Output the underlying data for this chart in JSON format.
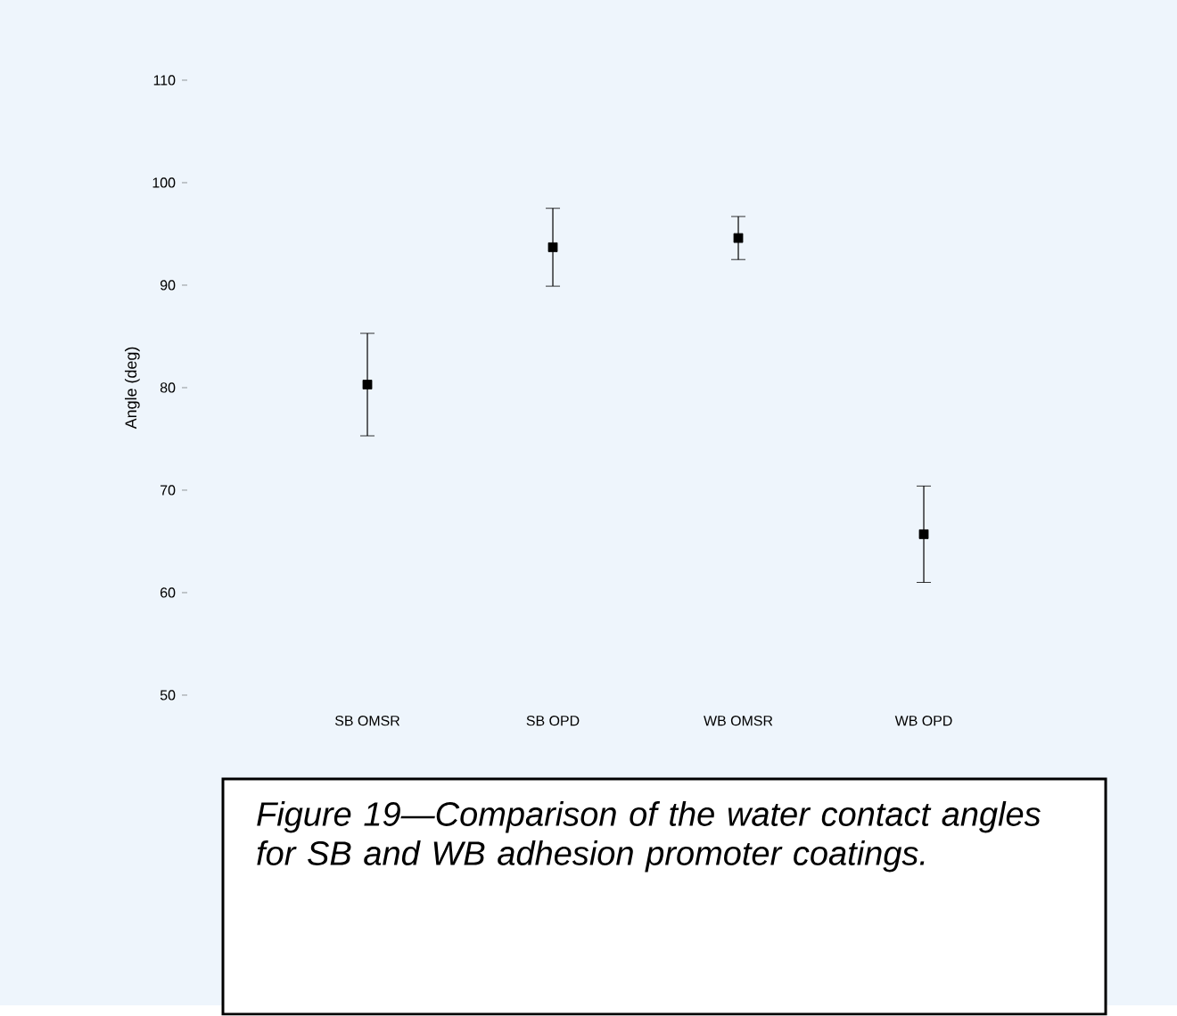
{
  "chart_data": {
    "type": "scatter",
    "ylabel": "Angle (deg)",
    "categories": [
      "SB OMSR",
      "SB OPD",
      "WB OMSR",
      "WB OPD"
    ],
    "values": [
      80.3,
      93.7,
      94.6,
      65.7
    ],
    "errors": [
      5,
      3.8,
      2.1,
      4.7
    ],
    "color": "#000000",
    "marker": "square",
    "ylim": [
      50,
      110
    ],
    "yticks": [
      50,
      60,
      70,
      80,
      90,
      100,
      110
    ],
    "annotations": [
      "Figure 19—Comparison of the water contact angles for SB and WB adhesion promoter coatings."
    ]
  }
}
